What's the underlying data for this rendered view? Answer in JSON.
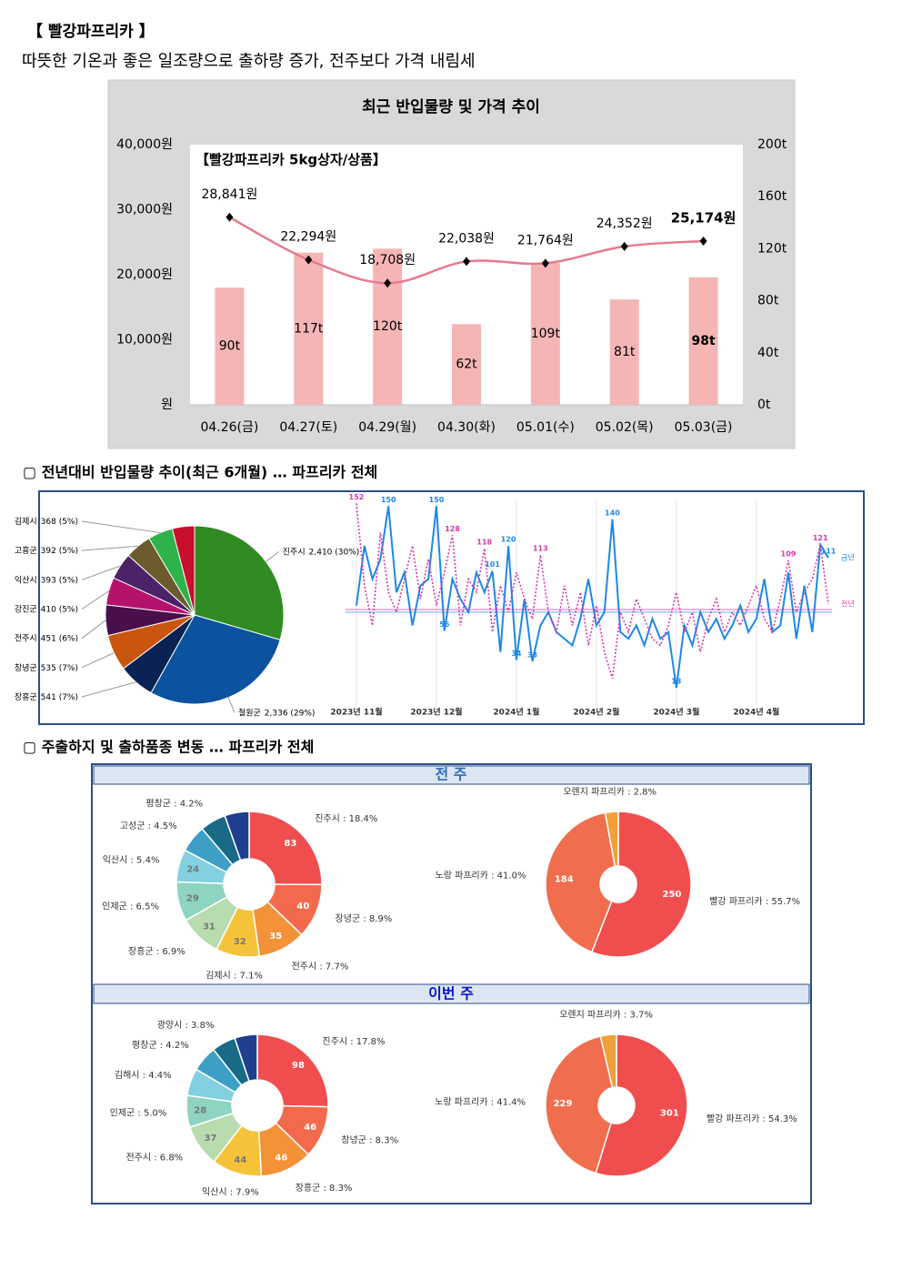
{
  "header": {
    "title": "【 빨강파프리카 】",
    "subtitle": "따뜻한 기온과 좋은 일조량으로 출하량 증가, 전주보다 가격 내림세"
  },
  "sections": [
    "▢ 전년대비 반입물량 추이(최근 6개월) … 파프리카 전체",
    "▢ 주출하지 및 출하품종 변동 … 파프리카 전체"
  ],
  "panels": [
    "전 주",
    "이번 주"
  ],
  "chart_data": [
    {
      "type": "combo",
      "title": "최근 반입물량 및 가격 추이",
      "annotation": "【빨강파프리카 5kg상자/상품】",
      "categories": [
        "04.26(금)",
        "04.27(토)",
        "04.29(월)",
        "04.30(화)",
        "05.01(수)",
        "05.02(목)",
        "05.03(금)"
      ],
      "series": [
        {
          "type": "bar",
          "axis": "y2",
          "color": "#f5b5b5",
          "values": [
            90,
            117,
            120,
            62,
            109,
            81,
            98
          ],
          "value_labels": [
            "90t",
            "117t",
            "120t",
            "62t",
            "109t",
            "81t",
            "98t"
          ]
        },
        {
          "type": "line",
          "color": "#e8798f",
          "values": [
            28841,
            22294,
            18708,
            22038,
            21764,
            24352,
            25174
          ],
          "value_labels": [
            "28,841원",
            "22,294원",
            "18,708원",
            "22,038원",
            "21,764원",
            "24,352원",
            "25,174원"
          ]
        }
      ],
      "highlight_last": true,
      "ylim": [
        0,
        40000
      ],
      "yticks": [
        {
          "value": 0,
          "label": "원"
        },
        {
          "value": 10000,
          "label": "10,000원"
        },
        {
          "value": 20000,
          "label": "20,000원"
        },
        {
          "value": 30000,
          "label": "30,000원"
        },
        {
          "value": 40000,
          "label": "40,000원"
        }
      ],
      "y2lim": [
        0,
        200
      ],
      "y2ticks": [
        {
          "value": 0,
          "label": "0t"
        },
        {
          "value": 40,
          "label": "40t"
        },
        {
          "value": 80,
          "label": "80t"
        },
        {
          "value": 120,
          "label": "120t"
        },
        {
          "value": 160,
          "label": "160t"
        },
        {
          "value": 200,
          "label": "200t"
        }
      ]
    },
    {
      "type": "pie",
      "categories": [
        "진주시",
        "철원군",
        "장흥군",
        "창녕군",
        "전주시",
        "강진군",
        "익산시",
        "고흥군",
        "김제시",
        null
      ],
      "values": [
        2410,
        2336,
        541,
        535,
        451,
        410,
        393,
        392,
        368,
        330
      ],
      "value_labels": [
        "2,410 (30%)",
        "2,336 (29%)",
        "541 (7%)",
        "535 (7%)",
        "451 (6%)",
        "410 (5%)",
        "393 (5%)",
        "392 (5%)",
        "368 (5%)",
        null
      ],
      "colors": [
        "#2f8b22",
        "#0b539e",
        "#0b2352",
        "#c9550f",
        "#4a0f4a",
        "#b5126e",
        "#4b2366",
        "#6b5a2b",
        "#2db34a",
        "#c8102e"
      ]
    },
    {
      "type": "line",
      "grid": true,
      "xlim": [
        0,
        59
      ],
      "ylim": [
        0,
        155
      ],
      "xticks": [
        {
          "value": 0,
          "label": "2023년 11월"
        },
        {
          "value": 10,
          "label": "2023년 12월"
        },
        {
          "value": 20,
          "label": "2024년 1월"
        },
        {
          "value": 30,
          "label": "2024년 2월"
        },
        {
          "value": 40,
          "label": "2024년 3월"
        },
        {
          "value": 50,
          "label": "2024년 4월"
        }
      ],
      "series": [
        {
          "name": "금년",
          "color": "#1e88e5",
          "dashed": false,
          "average": 70,
          "values": [
            75,
            120,
            95,
            110,
            150,
            85,
            100,
            60,
            90,
            95,
            150,
            56,
            95,
            80,
            70,
            100,
            85,
            101,
            40,
            120,
            34,
            80,
            33,
            60,
            70,
            55,
            50,
            45,
            65,
            95,
            60,
            70,
            140,
            55,
            50,
            60,
            45,
            65,
            50,
            55,
            13,
            60,
            45,
            70,
            55,
            65,
            50,
            60,
            75,
            55,
            65,
            95,
            55,
            60,
            100,
            50,
            90,
            55,
            121,
            111
          ],
          "value_labels": [
            null,
            null,
            null,
            null,
            "150",
            null,
            null,
            null,
            null,
            null,
            "150",
            "56",
            null,
            null,
            null,
            null,
            null,
            "101",
            null,
            "120",
            "34",
            null,
            "33",
            null,
            null,
            null,
            null,
            null,
            null,
            null,
            null,
            null,
            "140",
            null,
            null,
            null,
            null,
            null,
            null,
            null,
            "13",
            null,
            null,
            null,
            null,
            null,
            null,
            null,
            null,
            null,
            null,
            null,
            null,
            null,
            null,
            null,
            null,
            null,
            null,
            "111"
          ]
        },
        {
          "name": "전년",
          "color": "#d63aa8",
          "dashed": true,
          "average": 72,
          "values": [
            152,
            90,
            60,
            130,
            85,
            70,
            95,
            120,
            80,
            110,
            75,
            100,
            128,
            60,
            95,
            85,
            118,
            55,
            90,
            70,
            100,
            80,
            65,
            113,
            70,
            55,
            90,
            60,
            85,
            45,
            75,
            40,
            20,
            70,
            55,
            80,
            65,
            50,
            45,
            60,
            85,
            55,
            70,
            40,
            65,
            80,
            55,
            70,
            60,
            75,
            90,
            65,
            55,
            80,
            109,
            70,
            85,
            95,
            121,
            76
          ],
          "value_labels": [
            "152",
            null,
            null,
            null,
            null,
            null,
            null,
            null,
            null,
            null,
            null,
            null,
            "128",
            null,
            null,
            null,
            "118",
            null,
            null,
            null,
            null,
            null,
            null,
            "113",
            null,
            null,
            null,
            null,
            null,
            null,
            null,
            null,
            null,
            null,
            null,
            null,
            null,
            null,
            null,
            null,
            null,
            null,
            null,
            null,
            null,
            null,
            null,
            null,
            null,
            null,
            null,
            null,
            null,
            null,
            "109",
            null,
            null,
            null,
            "121",
            null
          ]
        }
      ]
    },
    {
      "type": "donut",
      "categories": [
        "진주시 : 18.4%",
        "창녕군 : 8.9%",
        "전주시 : 7.7%",
        "김제시 : 7.1%",
        "장흥군 : 6.9%",
        "인제군 : 6.5%",
        "익산시 : 5.4%",
        "고성군 : 4.5%",
        "평창군 : 4.2%",
        null
      ],
      "values": [
        83,
        40,
        35,
        32,
        31,
        29,
        24,
        20,
        19,
        18
      ],
      "value_labels": [
        "83",
        "40",
        "35",
        "32",
        "31",
        "29",
        "24",
        null,
        null,
        null
      ],
      "colors": [
        "#f04e4e",
        "#f26a4b",
        "#f39237",
        "#f4c33a",
        "#b9dcae",
        "#8fd3c1",
        "#82d0e0",
        "#3e9fc6",
        "#186a86",
        "#1f3f8e"
      ]
    },
    {
      "type": "donut",
      "categories": [
        "빨강 파프리카 : 55.7%",
        "노랑 파프리카 : 41.0%",
        "오렌지 파프리카 : 2.8%"
      ],
      "values": [
        250,
        184,
        13
      ],
      "value_labels": [
        "250",
        "184",
        null
      ],
      "colors": [
        "#f04e4e",
        "#f06e4e",
        "#f0a03a"
      ]
    },
    {
      "type": "donut",
      "categories": [
        "진주시 : 17.8%",
        "창녕군 : 8.3%",
        "장흥군 : 8.3%",
        "익산시 : 7.9%",
        "전주시 : 6.8%",
        "인제군 : 5.0%",
        "김해시 : 4.4%",
        "평창군 : 4.2%",
        "광양시 : 3.8%",
        null
      ],
      "values": [
        98,
        46,
        46,
        44,
        37,
        28,
        24,
        23,
        21,
        20
      ],
      "value_labels": [
        "98",
        "46",
        "46",
        "44",
        "37",
        "28",
        null,
        null,
        null,
        null
      ],
      "colors": [
        "#f04e4e",
        "#f26a4b",
        "#f39237",
        "#f4c33a",
        "#b9dcae",
        "#8fd3c1",
        "#82d0e0",
        "#3e9fc6",
        "#186a86",
        "#1f3f8e"
      ]
    },
    {
      "type": "donut",
      "categories": [
        "빨강 파프리카 : 54.3%",
        "노랑 파프리카 : 41.4%",
        "오렌지 파프리카 : 3.7%"
      ],
      "values": [
        301,
        229,
        20
      ],
      "value_labels": [
        "301",
        "229",
        null
      ],
      "colors": [
        "#f04e4e",
        "#f06e4e",
        "#f0a03a"
      ]
    }
  ]
}
